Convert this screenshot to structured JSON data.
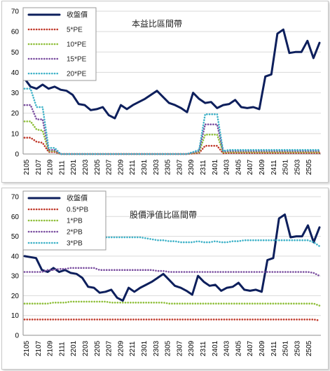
{
  "chart_data": [
    {
      "type": "line",
      "title": "本益比區間帶",
      "ylim": [
        0,
        70
      ],
      "yticks": [
        0,
        10,
        20,
        30,
        40,
        50,
        60,
        70
      ],
      "tick_labels": [
        "2105",
        "2107",
        "2109",
        "2111",
        "2201",
        "2203",
        "2205",
        "2207",
        "2209",
        "2211",
        "2301",
        "2303",
        "2305",
        "2307",
        "2309",
        "2311",
        "2401",
        "2403",
        "2405",
        "2407",
        "2409",
        "2411",
        "2501",
        "2503",
        "2505"
      ],
      "legend_position": "top-left",
      "grid": true,
      "series": [
        {
          "name": "收盤價",
          "color": "#0d1f5c",
          "style": "solid",
          "values": [
            37,
            33,
            32,
            34,
            32,
            33,
            31.5,
            31,
            29,
            24.5,
            24,
            21.5,
            22,
            23,
            19,
            17.5,
            24,
            22,
            24,
            25.5,
            27,
            29,
            31,
            28,
            25,
            24,
            22.5,
            20.5,
            30,
            27,
            25,
            25.5,
            22.5,
            24,
            24.5,
            26.5,
            23,
            22.5,
            23,
            22,
            38,
            39,
            59,
            61,
            49.5,
            50,
            50,
            55.5,
            47,
            54.5
          ]
        },
        {
          "name": "5*PE",
          "color": "#c0392b",
          "style": "dotted",
          "values": [
            8,
            8,
            6,
            5.5,
            1,
            1,
            0,
            0,
            0,
            0,
            0,
            0,
            0,
            0,
            0,
            0,
            0,
            0,
            0,
            0,
            0,
            0,
            0,
            0,
            0,
            0,
            0,
            0,
            0.2,
            0.5,
            4,
            4,
            4,
            0.3,
            0.5,
            0.5,
            0.5,
            0.5,
            0.5,
            0.5,
            0.5,
            0.5,
            0.5,
            0.5,
            0.5,
            0.5,
            0.5,
            0.5,
            0.5,
            0.5
          ]
        },
        {
          "name": "10*PE",
          "color": "#8fbf3a",
          "style": "dotted",
          "values": [
            16,
            16,
            12,
            11.5,
            1.5,
            1.5,
            0,
            0,
            0,
            0,
            0,
            0,
            0,
            0,
            0,
            0,
            0,
            0,
            0,
            0,
            0,
            0,
            0,
            0,
            0,
            0,
            0,
            0,
            0.5,
            1,
            9.5,
            9.5,
            9.5,
            0.8,
            1,
            1,
            1,
            1,
            1,
            1,
            1,
            1,
            1,
            1,
            1,
            1,
            1,
            1,
            1,
            1
          ]
        },
        {
          "name": "15*PE",
          "color": "#7b4fa0",
          "style": "dotted",
          "values": [
            24,
            24,
            17,
            17,
            2,
            2,
            0,
            0,
            0,
            0,
            0,
            0,
            0,
            0,
            0,
            0,
            0,
            0,
            0,
            0,
            0,
            0,
            0,
            0,
            0,
            0,
            0,
            0,
            0.8,
            1.5,
            14.5,
            14.5,
            14.5,
            1.2,
            1.5,
            1.5,
            1.5,
            1.5,
            1.5,
            1.5,
            1.5,
            1.5,
            1.5,
            1.5,
            1.5,
            1.5,
            1.5,
            1.5,
            1.5,
            1.5
          ]
        },
        {
          "name": "20*PE",
          "color": "#3fb2c8",
          "style": "dotted",
          "values": [
            32,
            32,
            23,
            23,
            3,
            3,
            0,
            0,
            0,
            0,
            0,
            0,
            0,
            0,
            0,
            0,
            0,
            0,
            0,
            0,
            0,
            0,
            0,
            0,
            0,
            0,
            0,
            0,
            1,
            2,
            19.5,
            19.5,
            19.5,
            1.5,
            2,
            2,
            2,
            2,
            2,
            2,
            2,
            2,
            2,
            2,
            2,
            2,
            2,
            2,
            2,
            2
          ]
        }
      ]
    },
    {
      "type": "line",
      "title": "股價淨值比區間帶",
      "ylim": [
        0,
        70
      ],
      "yticks": [
        0,
        10,
        20,
        30,
        40,
        50,
        60,
        70
      ],
      "tick_labels": [
        "2105",
        "2107",
        "2109",
        "2111",
        "2201",
        "2203",
        "2205",
        "2207",
        "2209",
        "2211",
        "2301",
        "2303",
        "2305",
        "2307",
        "2309",
        "2311",
        "2401",
        "2403",
        "2405",
        "2407",
        "2409",
        "2411",
        "2501",
        "2503",
        "2505"
      ],
      "legend_position": "top-left",
      "grid": true,
      "series": [
        {
          "name": "收盤價",
          "color": "#0d1f5c",
          "style": "solid",
          "values": [
            40,
            39.5,
            39,
            33,
            32,
            34,
            32,
            33,
            31.5,
            31,
            29,
            24.5,
            24,
            21.5,
            22,
            23,
            19,
            17.5,
            24,
            22,
            24,
            25.5,
            27,
            29,
            31,
            28,
            25,
            24,
            22.5,
            20.5,
            30,
            27,
            25,
            25.5,
            22.5,
            24,
            24.5,
            26.5,
            23,
            22.5,
            23,
            22,
            38,
            39,
            59,
            61,
            49.5,
            50,
            50,
            55.5,
            47,
            54.5
          ]
        },
        {
          "name": "0.5*PB",
          "color": "#c0392b",
          "style": "dotted",
          "values": [
            8,
            8,
            8,
            8,
            8,
            8,
            8,
            8,
            8,
            8,
            8,
            8,
            8,
            8,
            8,
            8,
            8,
            8,
            8,
            8,
            8,
            8,
            8,
            8,
            8,
            8,
            8,
            8,
            8,
            8,
            8,
            8,
            8,
            8,
            8,
            8,
            8,
            8,
            8,
            8,
            8,
            8,
            8,
            8,
            8,
            8,
            8,
            8,
            8,
            8,
            8,
            7.5
          ]
        },
        {
          "name": "1*PB",
          "color": "#8fbf3a",
          "style": "dotted",
          "values": [
            16,
            16,
            16,
            16,
            16,
            16.5,
            16.5,
            16.5,
            17,
            17,
            17,
            17,
            17,
            17,
            17,
            16.5,
            16.5,
            16.5,
            16.5,
            16.5,
            16.5,
            16.5,
            16.5,
            16.5,
            16.5,
            16,
            16,
            16,
            16,
            16,
            16,
            16,
            16,
            16,
            16,
            16,
            16,
            16,
            16,
            16,
            16,
            16,
            16,
            16,
            16,
            16,
            16,
            16,
            16,
            16,
            16,
            15
          ]
        },
        {
          "name": "2*PB",
          "color": "#7b4fa0",
          "style": "dotted",
          "values": [
            32,
            32,
            32,
            32,
            33,
            33,
            33.5,
            33.5,
            34,
            34,
            34,
            34,
            34,
            33,
            33,
            33,
            33,
            33,
            33,
            33,
            33,
            33,
            33,
            32.5,
            32.5,
            32,
            32,
            32,
            32,
            32,
            32,
            32,
            32,
            32,
            32,
            32,
            32,
            32,
            32,
            32,
            32,
            32,
            32,
            32,
            32,
            32,
            32,
            32,
            32,
            32,
            31.5,
            30
          ]
        },
        {
          "name": "3*PB",
          "color": "#3fb2c8",
          "style": "dotted",
          "values": [
            48,
            48,
            48,
            48,
            49,
            49.5,
            50,
            50.5,
            51,
            51,
            51,
            51,
            51,
            50,
            49.5,
            49.5,
            49.5,
            49.5,
            49.5,
            49.5,
            49.5,
            49,
            48.5,
            48,
            48,
            47.5,
            47.5,
            47,
            47,
            47,
            47.5,
            47,
            47,
            47.5,
            47,
            47,
            47.5,
            47.5,
            48,
            48,
            48,
            48,
            48,
            48,
            48,
            48,
            48,
            48,
            48,
            48,
            47,
            45
          ]
        }
      ]
    }
  ]
}
